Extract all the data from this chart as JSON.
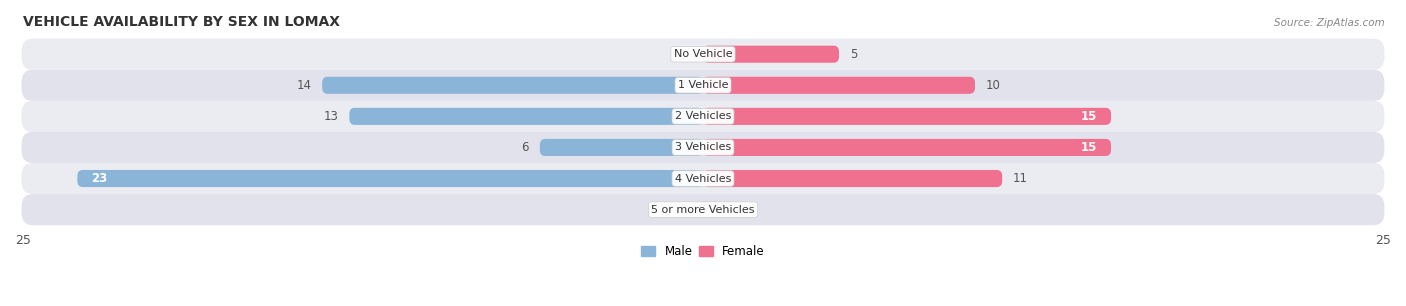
{
  "title": "VEHICLE AVAILABILITY BY SEX IN LOMAX",
  "source": "Source: ZipAtlas.com",
  "categories": [
    "No Vehicle",
    "1 Vehicle",
    "2 Vehicles",
    "3 Vehicles",
    "4 Vehicles",
    "5 or more Vehicles"
  ],
  "male_values": [
    0,
    14,
    13,
    6,
    23,
    0
  ],
  "female_values": [
    5,
    10,
    15,
    15,
    11,
    0
  ],
  "male_color": "#8ab4d8",
  "female_color": "#f07090",
  "male_color_light": "#b8d0e8",
  "female_color_light": "#f8b0c8",
  "bar_height": 0.55,
  "xlim": 25,
  "row_bg_colors": [
    "#ebebf2",
    "#e2e2ec"
  ],
  "legend_male_color": "#8ab4d8",
  "legend_female_color": "#f07090",
  "axis_label_fontsize": 9,
  "title_fontsize": 10,
  "bar_label_fontsize": 8.5,
  "category_label_fontsize": 8
}
